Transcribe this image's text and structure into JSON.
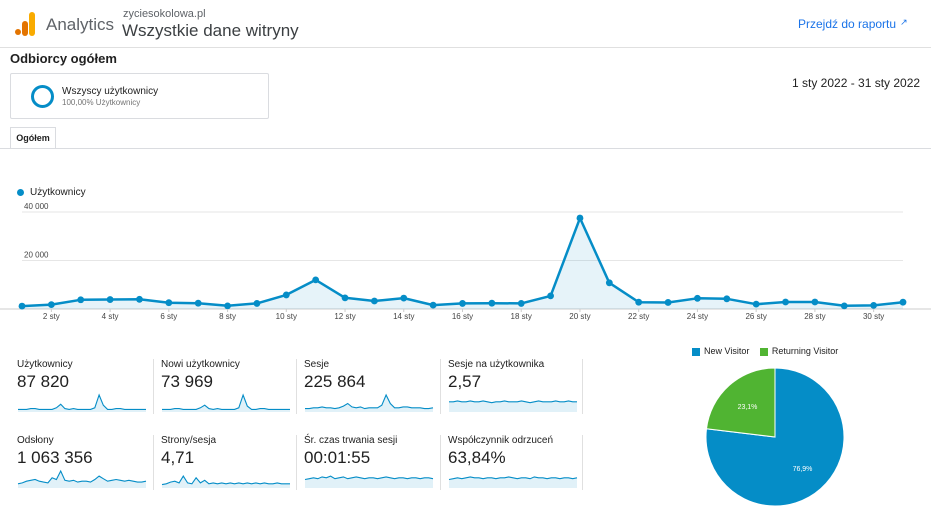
{
  "header": {
    "app_name": "Analytics",
    "site_name": "zyciesokolowa.pl",
    "view_name": "Wszystkie dane witryny",
    "report_link": "Przejdź do raportu",
    "report_icon": "external-link-icon"
  },
  "section_title": "Odbiorcy ogółem",
  "segment": {
    "name": "Wszyscy użytkownicy",
    "percent": "100,00% Użytkownicy",
    "color": "#058dc7"
  },
  "date_range": "1 sty 2022 - 31 sty 2022",
  "tabs": [
    {
      "label": "Ogółem"
    }
  ],
  "chart_data": [
    {
      "type": "area",
      "series": [
        {
          "name": "Użytkownicy",
          "color": "#058dc7",
          "values": [
            1200,
            1800,
            3800,
            3900,
            4000,
            2600,
            2400,
            1300,
            2300,
            5800,
            12000,
            4600,
            3300,
            4500,
            1600,
            2300,
            2400,
            2300,
            5400,
            37500,
            10800,
            2800,
            2700,
            4400,
            4200,
            2000,
            2900,
            2900,
            1300,
            1500,
            2800
          ]
        }
      ],
      "x": [
        1,
        2,
        3,
        4,
        5,
        6,
        7,
        8,
        9,
        10,
        11,
        12,
        13,
        14,
        15,
        16,
        17,
        18,
        19,
        20,
        21,
        22,
        23,
        24,
        25,
        26,
        27,
        28,
        29,
        30,
        31
      ],
      "xtick_labels": [
        "2 sty",
        "4 sty",
        "6 sty",
        "8 sty",
        "10 sty",
        "12 sty",
        "14 sty",
        "16 sty",
        "18 sty",
        "20 sty",
        "22 sty",
        "24 sty",
        "26 sty",
        "28 sty",
        "30 sty"
      ],
      "ytick_labels": [
        "40 000",
        "20 000"
      ],
      "ylim": [
        0,
        40000
      ],
      "grid": true,
      "legend": "top-left"
    },
    {
      "type": "pie",
      "categories": [
        "New Visitor",
        "Returning Visitor"
      ],
      "values": [
        76.9,
        23.1
      ],
      "labels": [
        "76,9%",
        "23,1%"
      ],
      "colors": [
        "#058dc7",
        "#50b432"
      ],
      "legend": "top"
    }
  ],
  "metrics": [
    {
      "label": "Użytkownicy",
      "value": "87 820",
      "spark": [
        3,
        3,
        3,
        4,
        4,
        3,
        3,
        3,
        3,
        5,
        9,
        4,
        3,
        4,
        3,
        3,
        3,
        3,
        5,
        20,
        8,
        3,
        3,
        4,
        4,
        3,
        3,
        3,
        3,
        3,
        3
      ]
    },
    {
      "label": "Nowi użytkownicy",
      "value": "73 969",
      "spark": [
        3,
        3,
        3,
        4,
        4,
        3,
        3,
        3,
        3,
        5,
        8,
        4,
        3,
        4,
        3,
        3,
        3,
        3,
        5,
        20,
        7,
        3,
        3,
        4,
        4,
        3,
        3,
        3,
        3,
        3,
        3
      ]
    },
    {
      "label": "Sesje",
      "value": "225 864",
      "spark": [
        4,
        4,
        5,
        5,
        6,
        5,
        5,
        4,
        5,
        7,
        10,
        6,
        5,
        6,
        4,
        5,
        5,
        5,
        8,
        20,
        10,
        5,
        5,
        6,
        6,
        5,
        5,
        5,
        4,
        4,
        5
      ]
    },
    {
      "label": "Sesje na użytkownika",
      "value": "2,57",
      "spark": [
        12,
        12,
        13,
        12,
        12,
        13,
        12,
        12,
        13,
        12,
        11,
        12,
        12,
        13,
        12,
        12,
        12,
        13,
        12,
        11,
        12,
        13,
        12,
        12,
        12,
        13,
        12,
        12,
        13,
        12,
        12
      ]
    },
    {
      "label": "Odsłony",
      "value": "1 063 356",
      "spark": [
        5,
        6,
        8,
        9,
        10,
        8,
        7,
        6,
        12,
        10,
        20,
        9,
        8,
        9,
        7,
        8,
        8,
        7,
        10,
        14,
        11,
        8,
        9,
        10,
        9,
        8,
        9,
        8,
        7,
        7,
        8
      ]
    },
    {
      "label": "Strony/sesja",
      "value": "4,71",
      "spark": [
        4,
        5,
        7,
        8,
        6,
        14,
        6,
        5,
        12,
        6,
        9,
        5,
        6,
        5,
        6,
        5,
        6,
        5,
        6,
        5,
        6,
        5,
        6,
        5,
        6,
        5,
        5,
        6,
        5,
        5,
        5
      ]
    },
    {
      "label": "Śr. czas trwania sesji",
      "value": "00:01:55",
      "spark": [
        10,
        11,
        12,
        11,
        13,
        12,
        14,
        11,
        12,
        13,
        11,
        12,
        13,
        12,
        11,
        12,
        12,
        11,
        12,
        13,
        12,
        11,
        12,
        12,
        11,
        12,
        12,
        11,
        12,
        12,
        11
      ]
    },
    {
      "label": "Współczynnik odrzuceń",
      "value": "63,84%",
      "spark": [
        10,
        11,
        12,
        11,
        12,
        13,
        12,
        12,
        11,
        12,
        12,
        11,
        12,
        12,
        13,
        12,
        11,
        12,
        12,
        11,
        13,
        12,
        12,
        11,
        12,
        12,
        11,
        12,
        12,
        11,
        12
      ]
    }
  ]
}
